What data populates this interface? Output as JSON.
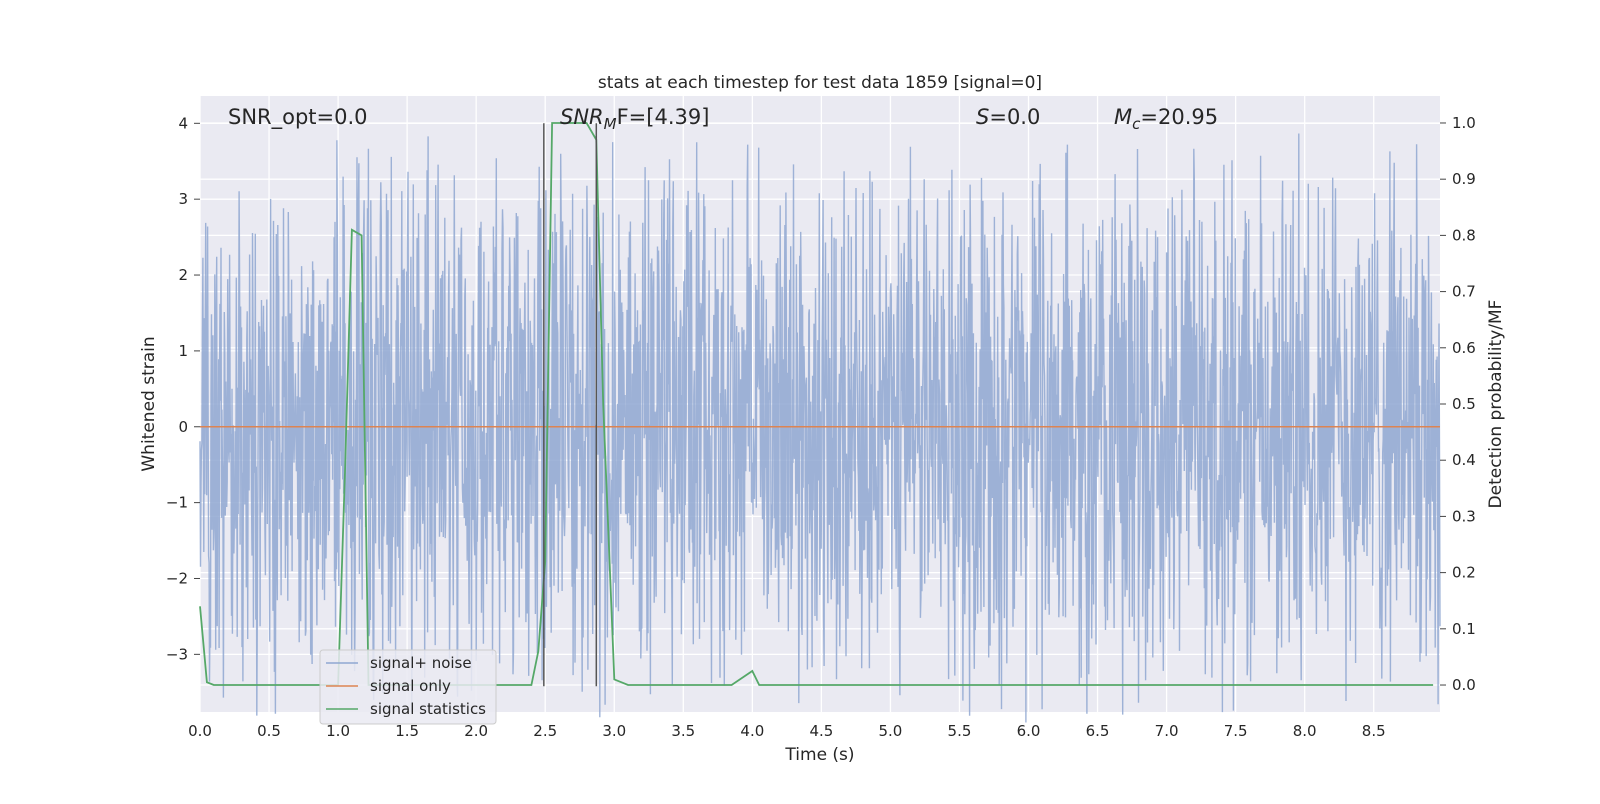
{
  "chart_data": {
    "type": "line",
    "title": "stats at each timestep for test data 1859 [signal=0]",
    "xlabel": "Time (s)",
    "ylabel_left": "Whitened strain",
    "ylabel_right": "Detection probability/MF",
    "xlim": [
      0.0,
      8.98
    ],
    "ylim_left": [
      -3.76,
      4.36
    ],
    "ylim_right": [
      -0.048,
      1.048
    ],
    "x_ticks": [
      "0.0",
      "0.5",
      "1.0",
      "1.5",
      "2.0",
      "2.5",
      "3.0",
      "3.5",
      "4.0",
      "4.5",
      "5.0",
      "5.5",
      "6.0",
      "6.5",
      "7.0",
      "7.5",
      "8.0",
      "8.5"
    ],
    "y_ticks_left": [
      "−3",
      "−2",
      "−1",
      "0",
      "1",
      "2",
      "3",
      "4"
    ],
    "y_ticks_right": [
      "0.0",
      "0.1",
      "0.2",
      "0.3",
      "0.4",
      "0.5",
      "0.6",
      "0.7",
      "0.8",
      "0.9",
      "1.0"
    ],
    "grid": true,
    "legend_position": "lower-left",
    "annotations": {
      "snr_opt": "SNR_opt=0.0",
      "snr_mf_main": "SNR",
      "snr_mf_sub": "M",
      "snr_mf_rest": "F=[4.39]",
      "s_main": "S",
      "s_rest": "=0.0",
      "mc_main": "M",
      "mc_sub": "c",
      "mc_rest": "=20.95"
    },
    "vertical_markers": [
      {
        "x": 2.49,
        "y_range": [
          -3.42,
          4.0
        ]
      },
      {
        "x": 2.87,
        "y_range": [
          -3.42,
          4.0
        ]
      }
    ],
    "series": [
      {
        "name": "signal+ noise",
        "axis": "left",
        "color": "#8fa7d1",
        "noise_envelope": {
          "x_range": [
            0.0,
            8.98
          ],
          "typical_min": -2.0,
          "typical_max": 2.0,
          "peak_max": 4.0,
          "peak_min": -3.4
        }
      },
      {
        "name": "signal only",
        "axis": "left",
        "color": "#dd8452",
        "x": [
          0.0,
          8.98
        ],
        "y": [
          0.0,
          0.0
        ]
      },
      {
        "name": "signal statistics",
        "axis": "right",
        "color": "#55a868",
        "x": [
          0.0,
          0.05,
          0.1,
          0.5,
          1.0,
          1.05,
          1.1,
          1.17,
          1.22,
          1.25,
          1.5,
          2.0,
          2.4,
          2.45,
          2.5,
          2.55,
          2.6,
          2.8,
          2.87,
          2.92,
          3.0,
          3.1,
          3.5,
          3.85,
          4.0,
          4.05,
          4.5,
          5.0,
          6.0,
          7.0,
          8.0,
          8.93
        ],
        "y": [
          0.14,
          0.005,
          0.0,
          0.0,
          0.0,
          0.38,
          0.81,
          0.8,
          0.0,
          0.0,
          0.0,
          0.0,
          0.0,
          0.06,
          0.22,
          1.0,
          1.0,
          1.0,
          0.97,
          0.5,
          0.01,
          0.0,
          0.0,
          0.0,
          0.025,
          0.0,
          0.0,
          0.0,
          0.0,
          0.0,
          0.0,
          0.0
        ]
      }
    ]
  },
  "legend": {
    "items": [
      {
        "label": "signal+ noise",
        "color": "#8fa7d1"
      },
      {
        "label": "signal only",
        "color": "#dd8452"
      },
      {
        "label": "signal statistics",
        "color": "#55a868"
      }
    ]
  },
  "colors": {
    "plot_background": "#eaeaf2",
    "grid": "#ffffff",
    "marker_line": "#555555"
  }
}
